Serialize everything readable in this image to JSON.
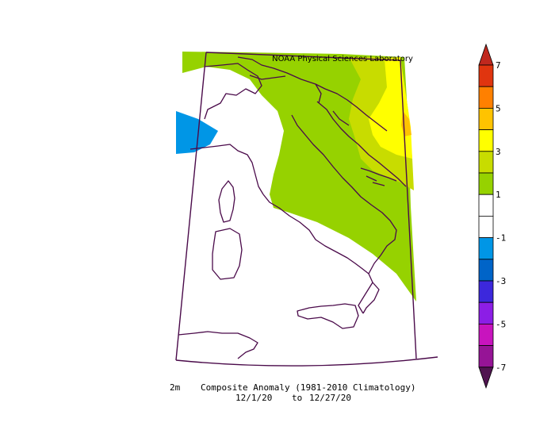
{
  "credit": "NOAA Physical Sciences Laboratory",
  "caption": {
    "variable": "2m",
    "title": "Composite Anomaly (1981-2010 Climatology)",
    "date_start": "12/1/20",
    "date_sep": "to",
    "date_end": "12/27/20"
  },
  "colorbar": {
    "tick_labels": [
      "7",
      "5",
      "3",
      "1",
      "-1",
      "-3",
      "-5",
      "-7"
    ],
    "bins": [
      {
        "range": "6 to 7",
        "color": "#e0350f"
      },
      {
        "range": "5 to 6",
        "color": "#ff8000"
      },
      {
        "range": "4 to 5",
        "color": "#ffc300"
      },
      {
        "range": "3 to 4",
        "color": "#ffff00"
      },
      {
        "range": "2 to 3",
        "color": "#c8dc00"
      },
      {
        "range": "1 to 2",
        "color": "#96d200"
      },
      {
        "range": "0 to 1",
        "color": "#ffffff"
      },
      {
        "range": "-1 to 0",
        "color": "#ffffff"
      },
      {
        "range": "-2 to -1",
        "color": "#0096e6"
      },
      {
        "range": "-3 to -2",
        "color": "#0064c8"
      },
      {
        "range": "-4 to -3",
        "color": "#3c28dc"
      },
      {
        "range": "-5 to -4",
        "color": "#8c1ee6"
      },
      {
        "range": "-6 to -5",
        "color": "#c814be"
      },
      {
        "range": "-7 to -6",
        "color": "#961496"
      }
    ],
    "over_color": "#c0281e",
    "under_color": "#501450"
  },
  "anomaly_fields": [
    {
      "name": "positive-1-to-2",
      "color": "#96d200"
    },
    {
      "name": "positive-2-to-3",
      "color": "#c8dc00"
    },
    {
      "name": "positive-3-to-4",
      "color": "#ffff00"
    },
    {
      "name": "positive-4-to-5",
      "color": "#ffc300"
    },
    {
      "name": "negative-1-to-2",
      "color": "#0096e6"
    }
  ]
}
